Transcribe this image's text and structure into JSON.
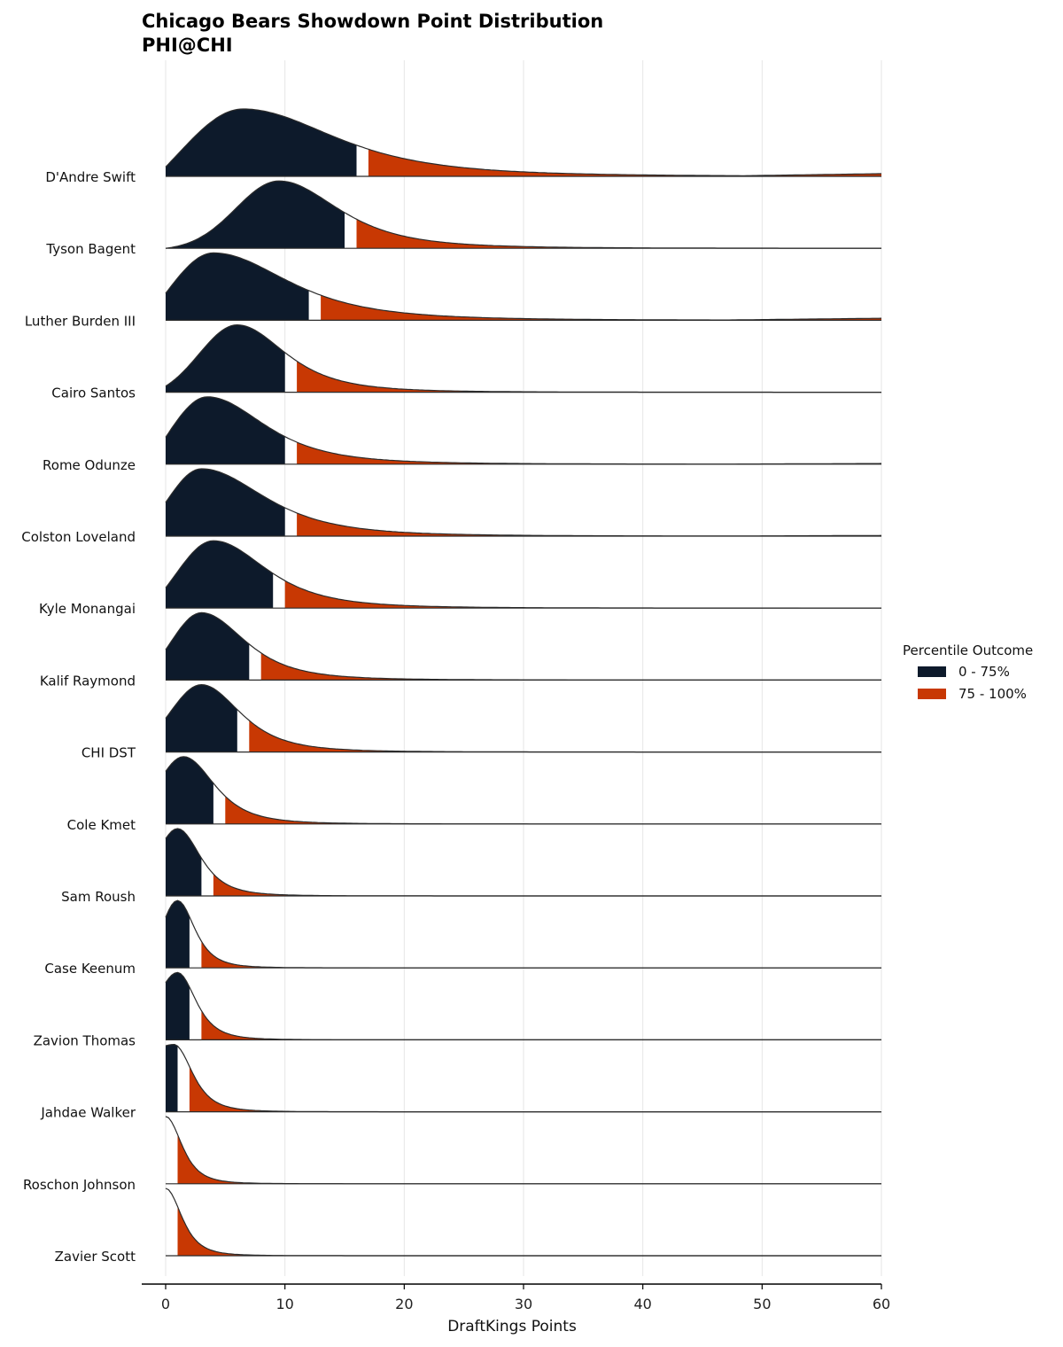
{
  "chart_data": {
    "type": "area",
    "title": "Chicago Bears Showdown Point Distribution",
    "subtitle": "PHI@CHI",
    "xlabel": "DraftKings Points",
    "ylabel": "",
    "xlim": [
      0,
      60
    ],
    "x_ticks": [
      0,
      10,
      20,
      30,
      40,
      50,
      60
    ],
    "x_tick_labels": [
      "0",
      "10",
      "20",
      "30",
      "40",
      "50",
      "60"
    ],
    "grid": "vertical",
    "legend": {
      "title": "Percentile Outcome",
      "position": "right",
      "entries": [
        {
          "label": "0 - 75%",
          "color": "#0d1a2b"
        },
        {
          "label": "75 - 100%",
          "color": "#c83803"
        }
      ]
    },
    "series": [
      {
        "name": "D'Andre Swift",
        "mode": 6.5,
        "spread_left": 5.5,
        "spread_right": 8.0,
        "p75": 16,
        "p75_end": 17,
        "start_level": 0.14,
        "tail_level": 0.04
      },
      {
        "name": "Tyson Bagent",
        "mode": 9.5,
        "spread_left": 3.6,
        "spread_right": 5.2,
        "p75": 15,
        "p75_end": 16,
        "start_level": 0.0,
        "tail_level": 0.0
      },
      {
        "name": "Luther Burden III",
        "mode": 4.0,
        "spread_left": 4.0,
        "spread_right": 6.5,
        "p75": 12,
        "p75_end": 13,
        "start_level": 0.4,
        "tail_level": 0.03
      },
      {
        "name": "Cairo Santos",
        "mode": 6.0,
        "spread_left": 3.2,
        "spread_right": 4.2,
        "p75": 10,
        "p75_end": 11,
        "start_level": 0.09,
        "tail_level": 0.0
      },
      {
        "name": "Rome Odunze",
        "mode": 3.5,
        "spread_left": 3.5,
        "spread_right": 5.0,
        "p75": 10,
        "p75_end": 11,
        "start_level": 0.4,
        "tail_level": 0.01
      },
      {
        "name": "Colston Loveland",
        "mode": 3.0,
        "spread_left": 3.0,
        "spread_right": 5.5,
        "p75": 10,
        "p75_end": 11,
        "start_level": 0.5,
        "tail_level": 0.01
      },
      {
        "name": "Kyle Monangai",
        "mode": 4.0,
        "spread_left": 3.2,
        "spread_right": 4.6,
        "p75": 9,
        "p75_end": 10,
        "start_level": 0.3,
        "tail_level": 0.0
      },
      {
        "name": "Kalif Raymond",
        "mode": 3.0,
        "spread_left": 2.6,
        "spread_right": 3.8,
        "p75": 7,
        "p75_end": 8,
        "start_level": 0.45,
        "tail_level": 0.0
      },
      {
        "name": "CHI DST",
        "mode": 3.0,
        "spread_left": 2.6,
        "spread_right": 3.4,
        "p75": 6,
        "p75_end": 7,
        "start_level": 0.5,
        "tail_level": 0.0
      },
      {
        "name": "Cole Kmet",
        "mode": 1.5,
        "spread_left": 2.0,
        "spread_right": 2.7,
        "p75": 4,
        "p75_end": 5,
        "start_level": 0.78,
        "tail_level": 0.0
      },
      {
        "name": "Sam Roush",
        "mode": 1.0,
        "spread_left": 1.5,
        "spread_right": 2.0,
        "p75": 3,
        "p75_end": 4,
        "start_level": 0.85,
        "tail_level": 0.0
      },
      {
        "name": "Case Keenum",
        "mode": 1.0,
        "spread_left": 1.5,
        "spread_right": 1.5,
        "p75": 2,
        "p75_end": 3,
        "start_level": 0.75,
        "tail_level": 0.0
      },
      {
        "name": "Zavion Thomas",
        "mode": 1.0,
        "spread_left": 1.5,
        "spread_right": 1.6,
        "p75": 2,
        "p75_end": 3,
        "start_level": 0.85,
        "tail_level": 0.0
      },
      {
        "name": "Jahdae Walker",
        "mode": 0.7,
        "spread_left": 2.0,
        "spread_right": 1.6,
        "p75": 1,
        "p75_end": 2,
        "start_level": 0.98,
        "tail_level": 0.0
      },
      {
        "name": "Roschon Johnson",
        "mode": 0.0,
        "spread_left": 1.0,
        "spread_right": 1.4,
        "p75": 0,
        "p75_end": 1,
        "start_level": 1.0,
        "tail_level": 0.0
      },
      {
        "name": "Zavier Scott",
        "mode": 0.0,
        "spread_left": 1.0,
        "spread_right": 1.4,
        "p75": 0,
        "p75_end": 1,
        "start_level": 1.0,
        "tail_level": 0.0
      }
    ]
  }
}
